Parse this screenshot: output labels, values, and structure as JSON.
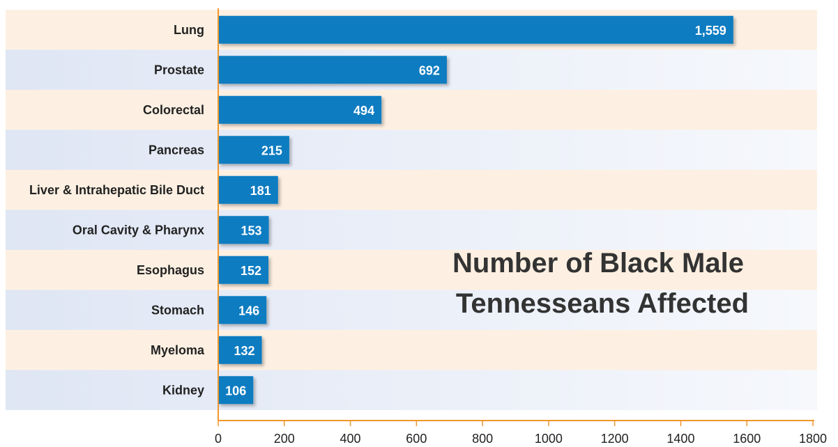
{
  "chart_data": {
    "type": "bar",
    "orientation": "horizontal",
    "title": "Number of Black Male Tennesseans Affected",
    "title_lines": [
      "Number of Black Male",
      "Tennesseans Affected"
    ],
    "categories": [
      "Lung",
      "Prostate",
      "Colorectal",
      "Pancreas",
      "Liver & Intrahepatic Bile Duct",
      "Oral Cavity & Pharynx",
      "Esophagus",
      "Stomach",
      "Myeloma",
      "Kidney"
    ],
    "values": [
      1559,
      692,
      494,
      215,
      181,
      153,
      152,
      146,
      132,
      106
    ],
    "value_labels": [
      "1,559",
      "692",
      "494",
      "215",
      "181",
      "153",
      "152",
      "146",
      "132",
      "106"
    ],
    "xlim": [
      0,
      1800
    ],
    "xticks": [
      0,
      200,
      400,
      600,
      800,
      1000,
      1200,
      1400,
      1600,
      1800
    ],
    "xlabel": "",
    "ylabel": "",
    "grid": false,
    "legend": "none",
    "colors": {
      "bar": "#0a7cc1",
      "axis": "#f0962e",
      "band_peach": "#fdf0e2",
      "band_blue": "#e4eaf6"
    }
  }
}
